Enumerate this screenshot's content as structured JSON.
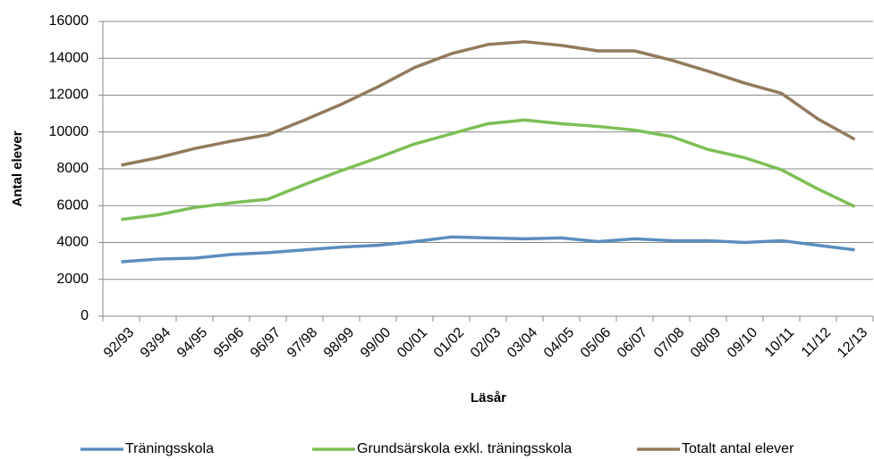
{
  "chart_data": {
    "type": "line",
    "y_label": "Antal elever",
    "x_label": "Läsår",
    "categories": [
      "92/93",
      "93/94",
      "94/95",
      "95/96",
      "96/97",
      "97/98",
      "98/99",
      "99/00",
      "00/01",
      "01/02",
      "02/03",
      "03/04",
      "04/05",
      "05/06",
      "06/07",
      "07/08",
      "08/09",
      "09/10",
      "10/11",
      "11/12",
      "12/13"
    ],
    "series": [
      {
        "name": "Träningsskola",
        "color": "#5b8ebf",
        "values": [
          2950,
          3100,
          3150,
          3350,
          3450,
          3600,
          3750,
          3850,
          4050,
          4300,
          4250,
          4200,
          4250,
          4050,
          4200,
          4100,
          4100,
          4000,
          4100,
          3850,
          3600
        ]
      },
      {
        "name": "Grundsärskola exkl. träningsskola",
        "color": "#7cbf55",
        "values": [
          5250,
          5500,
          5900,
          6150,
          6350,
          7150,
          7900,
          8600,
          9350,
          9900,
          10450,
          10650,
          10450,
          10300,
          10100,
          9750,
          9050,
          8600,
          7950,
          6900,
          5950
        ]
      },
      {
        "name": "Totalt antal elever",
        "color": "#937a5c",
        "values": [
          8200,
          8600,
          9100,
          9500,
          9850,
          10650,
          11500,
          12450,
          13500,
          14250,
          14750,
          14900,
          14700,
          14400,
          14400,
          13900,
          13300,
          12650,
          12100,
          10700,
          9600
        ]
      }
    ],
    "ylim": [
      0,
      16000
    ],
    "yticks": [
      0,
      2000,
      4000,
      6000,
      8000,
      10000,
      12000,
      14000,
      16000
    ],
    "grid": true
  }
}
